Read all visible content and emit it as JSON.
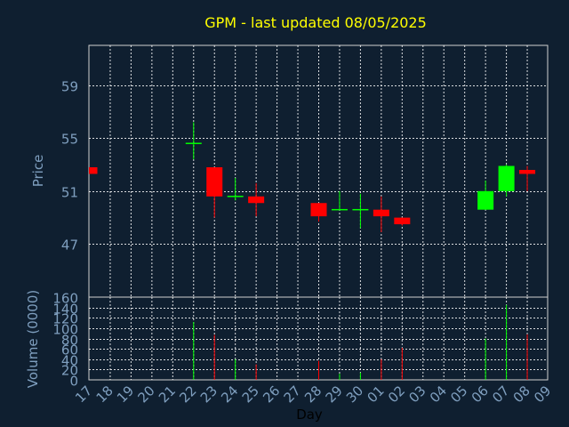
{
  "colors": {
    "background": "#0f1f30",
    "title": "#ffff00",
    "axis_text": "#7f9fbf",
    "grid": "#ffffff",
    "up": "#00ff00",
    "down": "#ff0000",
    "frame": "#d0d0d0"
  },
  "chart_data": {
    "type": "candlestick",
    "title": "GPM - last updated 08/05/2025",
    "xlabel": "Day",
    "grid": true,
    "days": [
      "17",
      "18",
      "19",
      "20",
      "21",
      "22",
      "23",
      "24",
      "25",
      "26",
      "27",
      "28",
      "29",
      "30",
      "01",
      "02",
      "03",
      "04",
      "05",
      "06",
      "07",
      "08",
      "09"
    ],
    "price": {
      "ylabel": "Price",
      "ylim": [
        43,
        62
      ],
      "yticks": [
        "47",
        "51",
        "55",
        "59"
      ],
      "yticks_values": [
        47,
        51,
        55,
        59
      ],
      "candles": [
        {
          "day": "17",
          "open": 52.8,
          "high": 52.8,
          "low": 52.3,
          "close": 52.3
        },
        {
          "day": "22",
          "open": 54.6,
          "high": 56.2,
          "low": 53.4,
          "close": 54.6
        },
        {
          "day": "23",
          "open": 52.8,
          "high": 52.8,
          "low": 49.0,
          "close": 50.6
        },
        {
          "day": "24",
          "open": 50.6,
          "high": 52.0,
          "low": 50.3,
          "close": 50.6
        },
        {
          "day": "25",
          "open": 50.6,
          "high": 51.6,
          "low": 49.1,
          "close": 50.1
        },
        {
          "day": "28",
          "open": 50.1,
          "high": 50.1,
          "low": 48.7,
          "close": 49.1
        },
        {
          "day": "29",
          "open": 49.6,
          "high": 51.0,
          "low": 49.6,
          "close": 49.6
        },
        {
          "day": "30",
          "open": 49.6,
          "high": 50.8,
          "low": 48.2,
          "close": 49.6
        },
        {
          "day": "01",
          "open": 49.6,
          "high": 50.6,
          "low": 47.9,
          "close": 49.1
        },
        {
          "day": "02",
          "open": 49.0,
          "high": 49.0,
          "low": 48.4,
          "close": 48.5
        },
        {
          "day": "06",
          "open": 49.6,
          "high": 51.8,
          "low": 49.6,
          "close": 51.0
        },
        {
          "day": "07",
          "open": 51.0,
          "high": 53.0,
          "low": 50.6,
          "close": 52.9
        },
        {
          "day": "08",
          "open": 52.6,
          "high": 52.9,
          "low": 51.0,
          "close": 52.3
        }
      ]
    },
    "volume": {
      "ylabel": "Volume (0000)",
      "ylim": [
        0,
        160
      ],
      "yticks": [
        "0",
        "20",
        "40",
        "60",
        "80",
        "100",
        "120",
        "140",
        "160"
      ],
      "yticks_values": [
        0,
        20,
        40,
        60,
        80,
        100,
        120,
        140,
        160
      ],
      "bars": [
        {
          "day": "22",
          "value": 112,
          "direction": "up"
        },
        {
          "day": "23",
          "value": 87,
          "direction": "down"
        },
        {
          "day": "24",
          "value": 40,
          "direction": "up"
        },
        {
          "day": "25",
          "value": 30,
          "direction": "down"
        },
        {
          "day": "28",
          "value": 37,
          "direction": "down"
        },
        {
          "day": "29",
          "value": 12,
          "direction": "up"
        },
        {
          "day": "30",
          "value": 14,
          "direction": "up"
        },
        {
          "day": "01",
          "value": 40,
          "direction": "down"
        },
        {
          "day": "02",
          "value": 62,
          "direction": "down"
        },
        {
          "day": "06",
          "value": 80,
          "direction": "up"
        },
        {
          "day": "07",
          "value": 145,
          "direction": "up"
        },
        {
          "day": "08",
          "value": 88,
          "direction": "down"
        }
      ]
    }
  }
}
